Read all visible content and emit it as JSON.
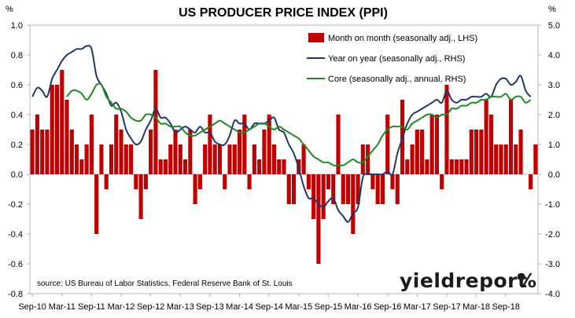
{
  "chart_data": {
    "type": "bar",
    "title": "US PRODUCER PRICE INDEX (PPI)",
    "left_axis_unit": "%",
    "right_axis_unit": "%",
    "left_ylim": [
      -0.8,
      1.0
    ],
    "right_ylim": [
      -4.0,
      5.0
    ],
    "left_ticks": [
      "1.0",
      "0.8",
      "0.6",
      "0.4",
      "0.2",
      "0.0",
      "-0.2",
      "-0.4",
      "-0.6",
      "-0.8"
    ],
    "right_ticks": [
      "5.0",
      "4.0",
      "3.0",
      "2.0",
      "1.0",
      "0.0",
      "-1.0",
      "-2.0",
      "-3.0",
      "-4.0"
    ],
    "x_tick_labels": [
      "Sep-10",
      "Mar-11",
      "Sep-11",
      "Mar-12",
      "Sep-12",
      "Mar-13",
      "Sep-13",
      "Mar-14",
      "Sep-14",
      "Mar-15",
      "Sep-15",
      "Mar-16",
      "Sep-16",
      "Mar-17",
      "Sep-17",
      "Mar-18",
      "Sep-18"
    ],
    "grid": false,
    "legend_position": "top-right",
    "series": [
      {
        "name": "Month on month (seasonally adj., LHS)",
        "type": "bar",
        "axis": "left",
        "color": "#c00000",
        "values": [
          0.3,
          0.4,
          0.3,
          0.3,
          0.6,
          0.6,
          0.7,
          0.5,
          0.3,
          0.2,
          0.1,
          0.2,
          0.4,
          -0.4,
          0.2,
          -0.1,
          0.2,
          0.4,
          0.3,
          0.2,
          0.2,
          -0.1,
          -0.3,
          -0.1,
          0.3,
          0.7,
          0.1,
          0.1,
          0.2,
          0.3,
          0.2,
          0.1,
          0.3,
          -0.2,
          -0.1,
          0.2,
          0.4,
          0.2,
          0.2,
          -0.1,
          0.2,
          0.2,
          0.3,
          0.4,
          -0.1,
          0.2,
          0.1,
          0.3,
          0.4,
          0.2,
          0.1,
          0.1,
          -0.2,
          -0.2,
          0.1,
          0.2,
          -0.1,
          -0.3,
          -0.6,
          -0.3,
          -0.1,
          -0.2,
          0.4,
          -0.2,
          -0.2,
          -0.4,
          -0.2,
          0.2,
          0.2,
          -0.1,
          -0.2,
          -0.2,
          0.4,
          -0.1,
          -0.2,
          0.5,
          0.1,
          0.2,
          0.3,
          0.3,
          0.1,
          0.4,
          0.4,
          -0.1,
          0.6,
          0.1,
          0.1,
          0.1,
          0.1,
          0.3,
          0.3,
          0.3,
          0.5,
          0.4,
          0.2,
          0.2,
          0.2,
          0.5,
          0.2,
          0.3,
          0.0,
          -0.1,
          0.2
        ]
      },
      {
        "name": "Year on year (seasonally adj., RHS)",
        "type": "line",
        "axis": "right",
        "color": "#1f3864",
        "x": [
          1,
          2,
          3,
          4,
          5,
          6,
          7,
          8,
          9,
          10,
          11,
          12,
          13,
          14,
          15,
          16,
          17,
          18,
          19,
          20,
          21,
          22,
          23,
          24,
          25,
          26,
          27,
          28,
          29,
          30,
          31,
          32,
          33,
          34,
          35,
          36,
          37,
          38,
          39,
          40,
          41,
          42,
          43,
          44,
          45,
          46,
          47,
          48,
          49,
          50,
          51,
          52,
          53,
          54,
          55,
          56,
          57,
          58,
          59,
          60,
          61,
          62,
          63,
          64,
          65,
          66,
          67,
          68,
          69,
          70,
          71,
          72,
          73,
          74,
          75,
          76,
          77,
          78,
          79,
          80,
          81,
          82,
          83,
          84,
          85,
          86,
          87,
          88,
          89,
          90,
          91,
          92,
          93,
          94,
          95,
          96,
          97,
          98,
          99,
          100,
          101,
          102
        ],
        "values": [
          2.6,
          2.9,
          2.8,
          2.6,
          3.2,
          3.5,
          3.8,
          4.0,
          4.1,
          4.2,
          4.2,
          4.3,
          4.2,
          3.3,
          3.0,
          2.7,
          2.3,
          2.4,
          2.1,
          1.5,
          1.2,
          1.0,
          1.1,
          1.5,
          1.8,
          2.2,
          1.9,
          1.9,
          1.7,
          1.4,
          1.5,
          1.6,
          1.5,
          1.4,
          1.6,
          1.4,
          1.4,
          1.1,
          1.0,
          1.0,
          1.3,
          1.8,
          1.7,
          1.7,
          1.5,
          1.7,
          1.7,
          1.7,
          1.8,
          1.9,
          1.5,
          1.4,
          1.0,
          0.7,
          0.2,
          -0.4,
          -0.8,
          -0.8,
          -1.0,
          -1.1,
          -0.9,
          -0.8,
          -1.2,
          -1.4,
          -1.6,
          -1.3,
          -1.1,
          -0.1,
          0.0,
          0.0,
          0.0,
          0.0,
          0.1,
          0.0,
          0.7,
          1.2,
          1.7,
          2.0,
          2.1,
          2.2,
          2.3,
          2.4,
          2.5,
          2.4,
          2.8,
          2.5,
          2.4,
          2.5,
          2.5,
          2.6,
          2.6,
          2.6,
          2.7,
          2.6,
          3.0,
          3.2,
          3.2,
          3.0,
          3.1,
          3.3,
          2.8,
          2.6
        ]
      },
      {
        "name": "Core (seasonally adj., annual, RHS)",
        "type": "line",
        "axis": "right",
        "color": "#1e8a1e",
        "x": [
          8,
          9,
          10,
          11,
          12,
          13,
          14,
          15,
          16,
          17,
          18,
          19,
          20,
          21,
          22,
          23,
          24,
          25,
          26,
          27,
          28,
          29,
          30,
          31,
          32,
          33,
          34,
          35,
          36,
          37,
          38,
          39,
          40,
          41,
          42,
          43,
          44,
          45,
          46,
          47,
          48,
          49,
          50,
          51,
          52,
          53,
          54,
          55,
          56,
          57,
          58,
          59,
          60,
          61,
          62,
          63,
          64,
          65,
          66,
          67,
          68,
          69,
          70,
          71,
          72,
          73,
          74,
          75,
          76,
          77,
          78,
          79,
          80,
          81,
          82,
          83,
          84,
          85,
          86,
          87,
          88,
          89,
          90,
          91,
          92,
          93,
          94,
          95,
          96,
          97,
          98,
          99,
          100,
          101,
          102
        ],
        "values": [
          2.6,
          2.8,
          2.8,
          2.7,
          2.5,
          2.7,
          3.0,
          3.0,
          2.6,
          2.4,
          2.2,
          2.2,
          2.1,
          1.9,
          1.8,
          1.8,
          2.0,
          2.0,
          1.9,
          1.7,
          1.7,
          1.6,
          1.6,
          1.6,
          1.4,
          1.3,
          1.3,
          1.4,
          1.5,
          1.6,
          1.7,
          1.8,
          1.7,
          1.6,
          1.5,
          1.4,
          1.4,
          1.5,
          1.6,
          1.7,
          1.7,
          1.6,
          1.5,
          1.6,
          1.5,
          1.4,
          1.3,
          1.2,
          1.0,
          0.8,
          0.6,
          0.5,
          0.4,
          0.4,
          0.3,
          0.3,
          0.3,
          0.4,
          0.5,
          0.4,
          0.4,
          0.6,
          0.8,
          1.0,
          1.3,
          1.5,
          1.6,
          1.6,
          1.6,
          1.5,
          1.7,
          1.8,
          1.9,
          2.0,
          2.0,
          1.9,
          2.0,
          2.0,
          2.2,
          2.2,
          2.3,
          2.3,
          2.4,
          2.4,
          2.5,
          2.5,
          2.6,
          2.6,
          2.6,
          2.7,
          2.5,
          2.6,
          2.6,
          2.4,
          2.5
        ]
      }
    ],
    "source_note": "source: US Bureau of Labor Statistics, Federal Reserve Bank of St. Louis"
  },
  "brand": {
    "name": "yieldreport",
    "symbol": "%",
    "color": "#1b1b1b",
    "accent": "#c00000"
  }
}
